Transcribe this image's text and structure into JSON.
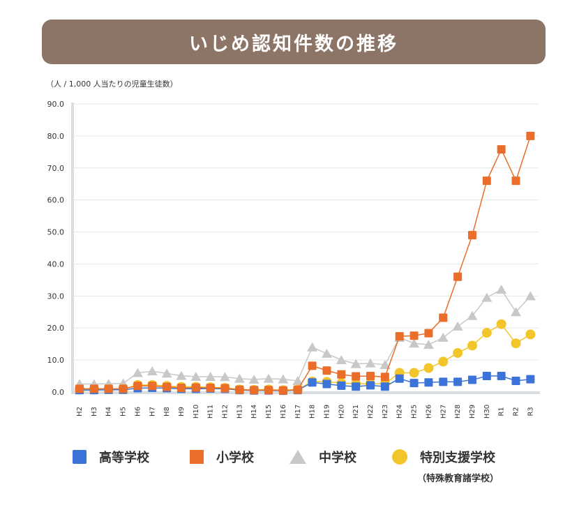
{
  "title": "いじめ認知件数の推移",
  "colors": {
    "title_bg": "#8c7566",
    "high": "#3b73d9",
    "elem": "#ea6d29",
    "middle": "#c8c8c8",
    "special": "#f2c52a"
  },
  "chart_data": {
    "type": "line",
    "ylabel": "（人 / 1,000 人当たりの児童生徒数）",
    "ylim": [
      0,
      90
    ],
    "yticks": [
      "0.0",
      "10.0",
      "20.0",
      "30.0",
      "40.0",
      "50.0",
      "60.0",
      "70.0",
      "80.0",
      "90.0"
    ],
    "grid": true,
    "categories": [
      "H2",
      "H3",
      "H4",
      "H5",
      "H6",
      "H7",
      "H8",
      "H9",
      "H10",
      "H11",
      "H12",
      "H13",
      "H14",
      "H15",
      "H16",
      "H17",
      "H18",
      "H19",
      "H20",
      "H21",
      "H22",
      "H23",
      "H24",
      "H25",
      "H26",
      "H27",
      "H28",
      "H29",
      "H30",
      "R1",
      "R2",
      "R3"
    ],
    "series": [
      {
        "name": "中学校",
        "marker": "triangle",
        "color": "#c8c8c8",
        "values": [
          2.5,
          2.5,
          2.6,
          2.7,
          6.0,
          6.5,
          5.8,
          5.1,
          4.8,
          4.8,
          4.7,
          4.2,
          3.9,
          4.2,
          4.0,
          3.5,
          14.0,
          12.0,
          10.0,
          8.8,
          9.0,
          8.5,
          17.0,
          15.2,
          14.8,
          17.0,
          20.5,
          23.8,
          29.5,
          32.0,
          25.0,
          30.0
        ]
      },
      {
        "name": "特別支援学校",
        "marker": "circle",
        "color": "#f2c52a",
        "values": [
          0.8,
          0.8,
          0.9,
          0.9,
          2.2,
          2.2,
          1.9,
          1.6,
          1.6,
          1.5,
          1.3,
          0.8,
          0.7,
          0.8,
          0.6,
          0.8,
          3.3,
          3.2,
          2.8,
          2.6,
          2.6,
          2.6,
          6.0,
          6.0,
          7.5,
          9.5,
          12.2,
          14.5,
          18.5,
          21.2,
          15.2,
          18.0
        ]
      },
      {
        "name": "高等学校",
        "marker": "square",
        "color": "#3b73d9",
        "values": [
          0.6,
          0.6,
          0.7,
          0.7,
          1.2,
          1.3,
          1.2,
          1.0,
          1.0,
          1.1,
          1.0,
          0.6,
          0.5,
          0.5,
          0.4,
          0.6,
          3.0,
          2.5,
          2.0,
          1.7,
          2.1,
          1.7,
          4.2,
          2.8,
          3.0,
          3.2,
          3.2,
          3.8,
          5.0,
          5.0,
          3.5,
          4.0
        ]
      },
      {
        "name": "小学校",
        "marker": "square",
        "color": "#ea6d29",
        "values": [
          1.0,
          1.0,
          1.0,
          1.0,
          1.9,
          1.9,
          1.6,
          1.3,
          1.4,
          1.3,
          1.2,
          0.7,
          0.6,
          0.6,
          0.5,
          0.7,
          8.2,
          6.7,
          5.5,
          4.9,
          5.0,
          4.7,
          17.4,
          17.6,
          18.4,
          23.2,
          36.0,
          49.0,
          66.0,
          75.8,
          66.0,
          80.0
        ]
      }
    ]
  },
  "legend": {
    "items": [
      {
        "label": "高等学校"
      },
      {
        "label": "小学校"
      },
      {
        "label": "中学校"
      },
      {
        "label": "特別支援学校"
      }
    ],
    "sub_label": "（特殊教育諸学校）"
  }
}
